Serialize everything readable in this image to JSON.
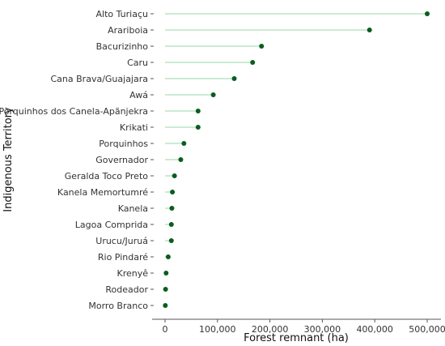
{
  "chart_data": {
    "type": "lollipop",
    "xlabel": "Forest remnant (ha)",
    "ylabel": "Indigenous Territory",
    "xlim": [
      -25000,
      515000
    ],
    "xticks": [
      0,
      100000,
      200000,
      300000,
      400000,
      500000
    ],
    "xtick_labels": [
      "0",
      "100,000",
      "200,000",
      "300,000",
      "400,000",
      "500,000"
    ],
    "grid": false,
    "colors": {
      "stem": "#9ad7a8",
      "point": "#0b5d1e",
      "axis": "#555555"
    },
    "categories": [
      "Alto Turiaçu",
      "Arariboia",
      "Bacurizinho",
      "Caru",
      "Cana Brava/Guajajara",
      "Awá",
      "Porquinhos dos Canela-Apãnjekra",
      "Krikati",
      "Porquinhos",
      "Governador",
      "Geralda Toco Preto",
      "Kanela Memortumré",
      "Kanela",
      "Lagoa Comprida",
      "Urucu/Juruá",
      "Rio Pindaré",
      "Krenyê",
      "Rodeador",
      "Morro Branco"
    ],
    "values": [
      500000,
      390000,
      184000,
      167000,
      132000,
      92000,
      63000,
      63000,
      36000,
      30000,
      18000,
      14000,
      13000,
      12000,
      12000,
      6000,
      2000,
      1000,
      500
    ]
  }
}
